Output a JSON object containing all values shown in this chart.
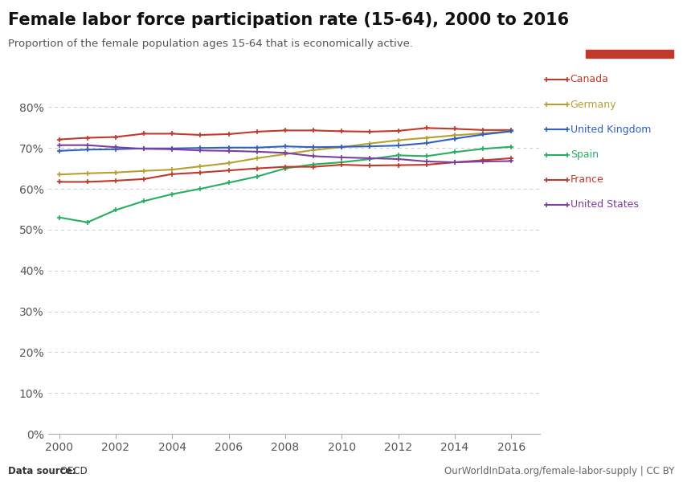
{
  "title": "Female labor force participation rate (15-64), 2000 to 2016",
  "subtitle": "Proportion of the female population ages 15-64 that is economically active.",
  "datasource_bold": "Data source:",
  "datasource_normal": " OECD",
  "url": "OurWorldInData.org/female-labor-supply | CC BY",
  "years": [
    2000,
    2001,
    2002,
    2003,
    2004,
    2005,
    2006,
    2007,
    2008,
    2009,
    2010,
    2011,
    2012,
    2013,
    2014,
    2015,
    2016
  ],
  "series": [
    {
      "name": "Canada",
      "color": "#c0392b",
      "values": [
        72.1,
        72.5,
        72.7,
        73.5,
        73.5,
        73.2,
        73.4,
        74.0,
        74.3,
        74.3,
        74.1,
        74.0,
        74.2,
        74.9,
        74.7,
        74.4,
        74.4
      ]
    },
    {
      "name": "Germany",
      "color": "#b5a030",
      "values": [
        63.5,
        63.8,
        64.0,
        64.4,
        64.7,
        65.5,
        66.3,
        67.5,
        68.5,
        69.5,
        70.2,
        71.1,
        71.9,
        72.5,
        73.1,
        73.6,
        74.1
      ]
    },
    {
      "name": "United Kingdom",
      "color": "#3060c0",
      "values": [
        69.3,
        69.6,
        69.7,
        69.9,
        69.9,
        70.0,
        70.1,
        70.1,
        70.4,
        70.2,
        70.3,
        70.4,
        70.6,
        71.2,
        72.3,
        73.3,
        74.1
      ]
    },
    {
      "name": "Spain",
      "color": "#27ae60",
      "values": [
        53.0,
        51.8,
        54.8,
        57.0,
        58.7,
        60.0,
        61.5,
        63.0,
        65.0,
        66.0,
        66.5,
        67.3,
        68.2,
        68.0,
        69.0,
        69.8,
        70.3
      ]
    },
    {
      "name": "France",
      "color": "#c0392b",
      "values": [
        61.7,
        61.7,
        62.0,
        62.4,
        63.6,
        64.0,
        64.5,
        65.0,
        65.4,
        65.4,
        65.9,
        65.7,
        65.8,
        65.9,
        66.5,
        67.0,
        67.5
      ]
    },
    {
      "name": "United States",
      "color": "#7b3fa0",
      "values": [
        70.7,
        70.7,
        70.2,
        69.8,
        69.7,
        69.4,
        69.3,
        69.1,
        68.8,
        68.0,
        67.7,
        67.5,
        67.3,
        66.7,
        66.5,
        66.7,
        66.8
      ]
    }
  ],
  "ylim": [
    0,
    0.85
  ],
  "yticks": [
    0.0,
    0.1,
    0.2,
    0.3,
    0.4,
    0.5,
    0.6,
    0.7,
    0.8
  ],
  "ytick_labels": [
    "0%",
    "10%",
    "20%",
    "30%",
    "40%",
    "50%",
    "60%",
    "70%",
    "80%"
  ],
  "xlim": [
    1999.6,
    2017.0
  ],
  "xticks": [
    2000,
    2002,
    2004,
    2006,
    2008,
    2010,
    2012,
    2014,
    2016
  ],
  "background_color": "#ffffff",
  "logo_bg": "#1a3a5c",
  "logo_red": "#c0392b",
  "grid_color": "#cccccc",
  "spine_color": "#aaaaaa"
}
